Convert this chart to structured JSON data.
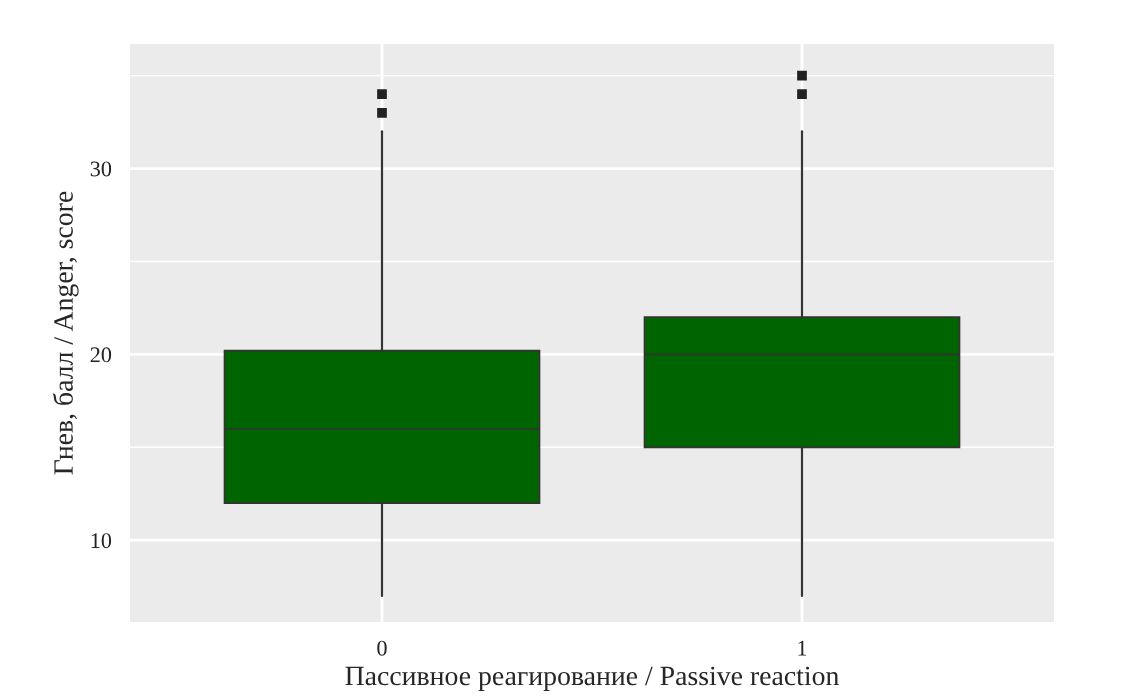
{
  "chart_data": {
    "type": "box",
    "xlabel": "Пассивное реагирование / Passive reaction",
    "ylabel": "Гнев, балл / Anger, score",
    "categories": [
      "0",
      "1"
    ],
    "boxes": [
      {
        "low": 7,
        "q1": 12,
        "median": 16,
        "q3": 20.2,
        "high": 32,
        "outliers": [
          33,
          34
        ]
      },
      {
        "low": 7,
        "q1": 15,
        "median": 20,
        "q3": 22,
        "high": 32,
        "outliers": [
          34,
          35
        ]
      }
    ],
    "color": "#006400",
    "ylim": [
      5.6,
      36.7
    ],
    "yticks": [
      10,
      {
        "value": 15,
        "label": null
      },
      20,
      {
        "value": 25,
        "label": null
      },
      30,
      {
        "value": 35,
        "label": null
      }
    ],
    "grid": true
  }
}
